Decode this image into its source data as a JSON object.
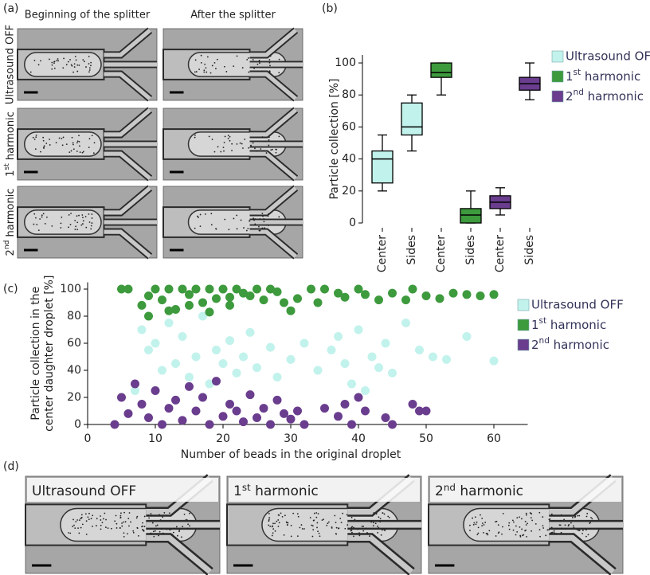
{
  "panels": {
    "a": {
      "label": "(a)",
      "columns": [
        "Beginning of the splitter",
        "After the splitter"
      ],
      "rows": [
        "Ultrasound OFF",
        "1st harmonic",
        "2nd harmonic"
      ]
    },
    "d": {
      "label": "(d)",
      "images": [
        "Ultrasound OFF",
        "1st harmonic",
        "2nd harmonic"
      ]
    }
  },
  "chart_data": [
    {
      "type": "box",
      "label": "(b)",
      "ylabel": "Particle collection [%]",
      "ylim": [
        0,
        105
      ],
      "yticks": [
        0,
        20,
        40,
        60,
        80,
        100
      ],
      "series": [
        {
          "name": "Ultrasound OFF",
          "color": "#c2f2ec",
          "categories": [
            "Center",
            "Sides"
          ],
          "boxes": [
            {
              "min": 20,
              "q1": 25,
              "median": 40,
              "q3": 45,
              "max": 55
            },
            {
              "min": 45,
              "q1": 55,
              "median": 60,
              "q3": 75,
              "max": 80
            }
          ]
        },
        {
          "name": "1st harmonic",
          "color": "#3d9a3d",
          "categories": [
            "Center",
            "Sides"
          ],
          "boxes": [
            {
              "min": 80,
              "q1": 91,
              "median": 94,
              "q3": 100,
              "max": 100
            },
            {
              "min": 0,
              "q1": 0,
              "median": 5,
              "q3": 9,
              "max": 20
            }
          ]
        },
        {
          "name": "2nd harmonic",
          "color": "#6a3d8e",
          "categories": [
            "Center",
            "Sides"
          ],
          "boxes": [
            {
              "min": 5,
              "q1": 9,
              "median": 13,
              "q3": 17,
              "max": 22
            },
            {
              "min": 77,
              "q1": 83,
              "median": 87,
              "q3": 91,
              "max": 100
            }
          ]
        }
      ]
    },
    {
      "type": "scatter",
      "label": "(c)",
      "ylabel": [
        "Particle collection in the",
        "center daughter droplet [%]"
      ],
      "xlabel": "Number of beads in the original droplet",
      "xlim": [
        0,
        65
      ],
      "xticks": [
        0,
        10,
        20,
        30,
        40,
        50,
        60
      ],
      "ylim": [
        0,
        105
      ],
      "yticks": [
        0,
        20,
        40,
        60,
        80,
        100
      ],
      "series": [
        {
          "name": "Ultrasound OFF",
          "color": "#c2f2ec",
          "x": [
            7,
            8,
            9,
            10,
            11,
            12,
            13,
            14,
            15,
            16,
            17,
            18,
            19,
            20,
            21,
            22,
            23,
            24,
            25,
            27,
            28,
            30,
            32,
            34,
            36,
            37,
            38,
            39,
            40,
            41,
            42,
            43,
            44,
            45,
            47,
            49,
            51,
            53,
            56,
            60
          ],
          "values": [
            25,
            70,
            55,
            60,
            40,
            75,
            45,
            65,
            35,
            50,
            80,
            30,
            55,
            45,
            62,
            38,
            50,
            68,
            42,
            57,
            35,
            48,
            60,
            40,
            55,
            65,
            45,
            30,
            70,
            25,
            50,
            42,
            60,
            38,
            75,
            55,
            50,
            48,
            65,
            47
          ]
        },
        {
          "name": "1st harmonic",
          "color": "#3d9a3d",
          "x": [
            5,
            6,
            8,
            9,
            10,
            11,
            12,
            13,
            14,
            15,
            16,
            17,
            18,
            19,
            20,
            21,
            22,
            23,
            24,
            25,
            26,
            27,
            28,
            30,
            31,
            33,
            35,
            37,
            38,
            40,
            41,
            43,
            45,
            47,
            48,
            50,
            52,
            54,
            56,
            58,
            60,
            9,
            12,
            15,
            18,
            21,
            29,
            34
          ],
          "values": [
            100,
            100,
            88,
            95,
            100,
            92,
            100,
            85,
            100,
            96,
            100,
            90,
            100,
            93,
            100,
            88,
            100,
            97,
            95,
            100,
            92,
            100,
            98,
            84,
            93,
            100,
            100,
            97,
            94,
            100,
            96,
            92,
            97,
            92,
            100,
            95,
            93,
            97,
            96,
            95,
            96,
            80,
            84,
            88,
            83,
            94,
            90,
            90
          ]
        },
        {
          "name": "2nd harmonic",
          "color": "#6a3d8e",
          "x": [
            4,
            5,
            6,
            7,
            8,
            9,
            10,
            11,
            12,
            13,
            14,
            15,
            16,
            17,
            18,
            19,
            20,
            21,
            22,
            23,
            24,
            25,
            26,
            27,
            28,
            29,
            30,
            31,
            32,
            35,
            37,
            38,
            39,
            40,
            41,
            44,
            45,
            48,
            49,
            50
          ],
          "values": [
            0,
            20,
            8,
            30,
            15,
            5,
            25,
            0,
            12,
            18,
            3,
            28,
            10,
            20,
            0,
            32,
            6,
            15,
            10,
            2,
            22,
            5,
            12,
            0,
            18,
            8,
            4,
            10,
            0,
            12,
            6,
            15,
            0,
            20,
            10,
            5,
            0,
            15,
            10,
            10
          ]
        }
      ]
    }
  ]
}
